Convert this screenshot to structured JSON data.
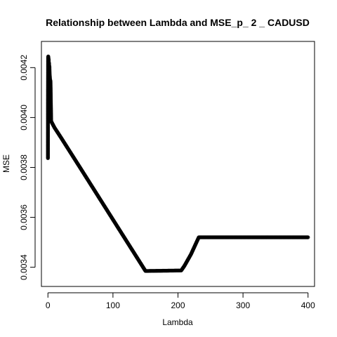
{
  "chart_data": {
    "type": "line",
    "title": "Relationship between Lambda and MSE_p_ 2 _ CADUSD",
    "xlabel": "Lambda",
    "ylabel": "MSE",
    "xlim": [
      -10,
      410
    ],
    "ylim": [
      0.003323,
      0.004305
    ],
    "grid": false,
    "legend": "none",
    "x_ticks": [
      0,
      100,
      200,
      300,
      400
    ],
    "x_tick_labels": [
      "0",
      "100",
      "200",
      "300",
      "400"
    ],
    "y_ticks": [
      0.0034,
      0.0036,
      0.0038,
      0.004,
      0.0042
    ],
    "y_tick_labels": [
      "0.0034",
      "0.0036",
      "0.0038",
      "0.0040",
      "0.0042"
    ],
    "line_color": "#0000ff",
    "point_color": "#000000",
    "series": [
      {
        "points": [
          [
            0,
            0.003837
          ],
          [
            0.1,
            0.004063
          ],
          [
            0.3,
            0.004238
          ],
          [
            0.5,
            0.004245
          ],
          [
            0.8,
            0.00424
          ],
          [
            1.0,
            0.0042
          ],
          [
            1.2,
            0.004233
          ],
          [
            1.5,
            0.00419
          ],
          [
            1.8,
            0.004218
          ],
          [
            2.0,
            0.004178
          ],
          [
            2.3,
            0.004205
          ],
          [
            2.6,
            0.004175
          ],
          [
            3.0,
            0.004163
          ],
          [
            3.3,
            0.004148
          ],
          [
            3.6,
            0.00415
          ],
          [
            4.0,
            0.004145
          ],
          [
            5,
            0.003985
          ],
          [
            10,
            0.00396
          ],
          [
            20,
            0.00392
          ],
          [
            50,
            0.003797
          ],
          [
            100,
            0.003591
          ],
          [
            150,
            0.003385
          ],
          [
            205,
            0.003387
          ],
          [
            210,
            0.003406
          ],
          [
            220,
            0.003452
          ],
          [
            232,
            0.00352
          ],
          [
            250,
            0.00352
          ],
          [
            300,
            0.00352
          ],
          [
            350,
            0.00352
          ],
          [
            400,
            0.00352
          ]
        ]
      }
    ]
  }
}
